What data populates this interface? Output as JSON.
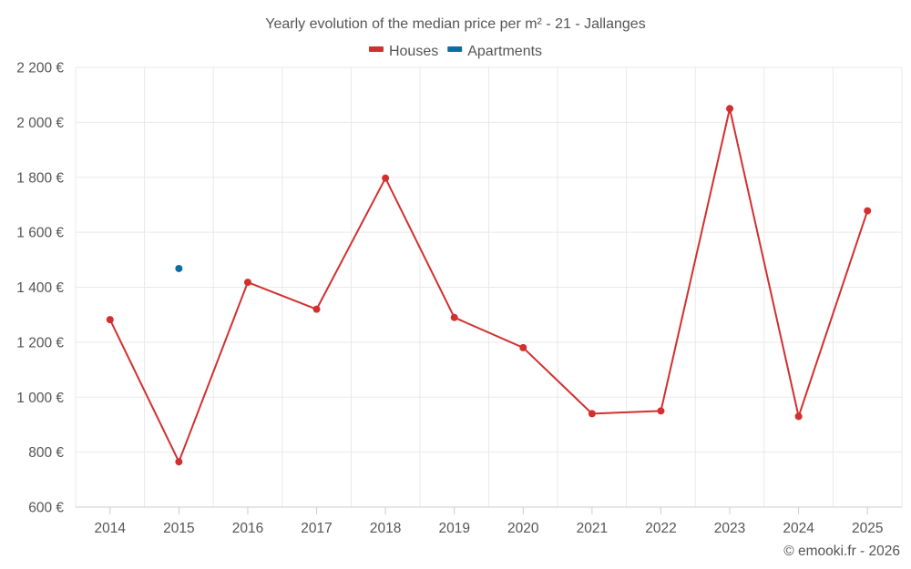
{
  "chart_data": {
    "type": "line",
    "title": "Yearly evolution of the median price per m² - 21 - Jallanges",
    "xlabel": "",
    "ylabel": "",
    "categories": [
      "2014",
      "2015",
      "2016",
      "2017",
      "2018",
      "2019",
      "2020",
      "2021",
      "2022",
      "2023",
      "2024",
      "2025"
    ],
    "ylim": [
      600,
      2200
    ],
    "yticks": [
      600,
      800,
      1000,
      1200,
      1400,
      1600,
      1800,
      2000,
      2200
    ],
    "ytick_labels": [
      "600 €",
      "800 €",
      "1 000 €",
      "1 200 €",
      "1 400 €",
      "1 600 €",
      "1 800 €",
      "2 000 €",
      "2 200 €"
    ],
    "grid": true,
    "legend_position": "top-center",
    "series": [
      {
        "name": "Houses",
        "color": "#d32f2f",
        "values": [
          1282,
          765,
          1418,
          1320,
          1797,
          1290,
          1180,
          940,
          950,
          2050,
          930,
          1678
        ]
      },
      {
        "name": "Apartments",
        "color": "#0b6ea3",
        "values": [
          null,
          1468,
          null,
          null,
          null,
          null,
          null,
          null,
          null,
          null,
          null,
          null
        ]
      }
    ]
  },
  "credit": "© emooki.fr - 2026"
}
